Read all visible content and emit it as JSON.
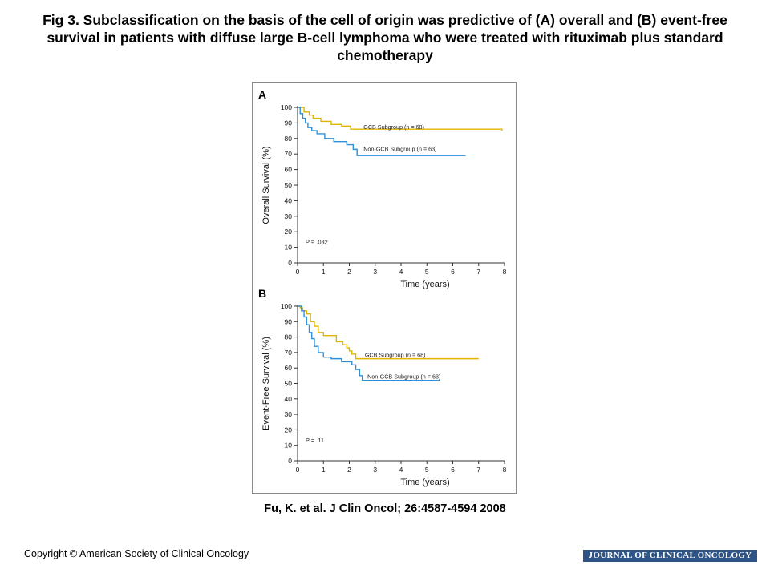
{
  "figure": {
    "title": "Fig 3. Subclassification on the basis of the cell of origin was predictive of (A) overall and (B) event-free survival in patients with diffuse large B-cell lymphoma who were treated with rituximab plus standard chemotherapy",
    "citation": "Fu, K. et al. J Clin Oncol; 26:4587-4594  2008",
    "copyright": "Copyright © American Society of Clinical Oncology",
    "journal_banner": "JOURNAL OF CLINICAL ONCOLOGY"
  },
  "colors": {
    "gcb": "#e0b400",
    "non_gcb": "#2e90d8",
    "axis": "#333333",
    "journal_bar": "#2e5385"
  },
  "chart_data": [
    {
      "type": "line",
      "panel": "A",
      "title": "",
      "xlabel": "Time (years)",
      "ylabel": "Overall Survival (%)",
      "xlim": [
        0,
        8
      ],
      "ylim": [
        0,
        100
      ],
      "xticks": [
        0,
        1,
        2,
        3,
        4,
        5,
        6,
        7,
        8
      ],
      "yticks": [
        0,
        10,
        20,
        30,
        40,
        50,
        60,
        70,
        80,
        90,
        100
      ],
      "annotation": {
        "p_label": "P",
        "p_value": " = .032"
      },
      "grid": false,
      "series": [
        {
          "name": "GCB Subgroup (n = 68)",
          "color": "#e0b400",
          "x": [
            0,
            0.25,
            0.45,
            0.6,
            0.9,
            1.3,
            1.7,
            2.05,
            7.9
          ],
          "y": [
            100,
            97,
            95,
            93,
            91,
            89,
            88,
            86,
            85
          ]
        },
        {
          "name": "Non-GCB Subgroup (n = 63)",
          "color": "#2e90d8",
          "x": [
            0,
            0.1,
            0.2,
            0.3,
            0.4,
            0.55,
            0.75,
            1.05,
            1.4,
            1.9,
            2.15,
            2.3,
            6.5
          ],
          "y": [
            100,
            96,
            93,
            90,
            87,
            85,
            83,
            80,
            78,
            76,
            73,
            69,
            69
          ]
        }
      ]
    },
    {
      "type": "line",
      "panel": "B",
      "title": "",
      "xlabel": "Time (years)",
      "ylabel": "Event-Free Survival (%)",
      "xlim": [
        0,
        8
      ],
      "ylim": [
        0,
        100
      ],
      "xticks": [
        0,
        1,
        2,
        3,
        4,
        5,
        6,
        7,
        8
      ],
      "yticks": [
        0,
        10,
        20,
        30,
        40,
        50,
        60,
        70,
        80,
        90,
        100
      ],
      "annotation": {
        "p_label": "P",
        "p_value": " = .11"
      },
      "grid": false,
      "series": [
        {
          "name": "GCB Subgroup (n = 68)",
          "color": "#e0b400",
          "x": [
            0,
            0.1,
            0.2,
            0.35,
            0.5,
            0.65,
            0.8,
            1.0,
            1.5,
            1.75,
            1.9,
            2.0,
            2.1,
            2.25,
            7.0
          ],
          "y": [
            100,
            99,
            97,
            95,
            90,
            87,
            83,
            81,
            77,
            75,
            73,
            71,
            69,
            66,
            66
          ]
        },
        {
          "name": "Non-GCB Subgroup (n = 63)",
          "color": "#2e90d8",
          "x": [
            0,
            0.15,
            0.25,
            0.35,
            0.45,
            0.55,
            0.65,
            0.8,
            1.0,
            1.3,
            1.7,
            2.1,
            2.25,
            2.4,
            2.5,
            5.5
          ],
          "y": [
            100,
            97,
            93,
            88,
            83,
            79,
            74,
            70,
            67,
            66,
            64,
            62,
            59,
            55,
            52,
            52
          ]
        }
      ]
    }
  ]
}
